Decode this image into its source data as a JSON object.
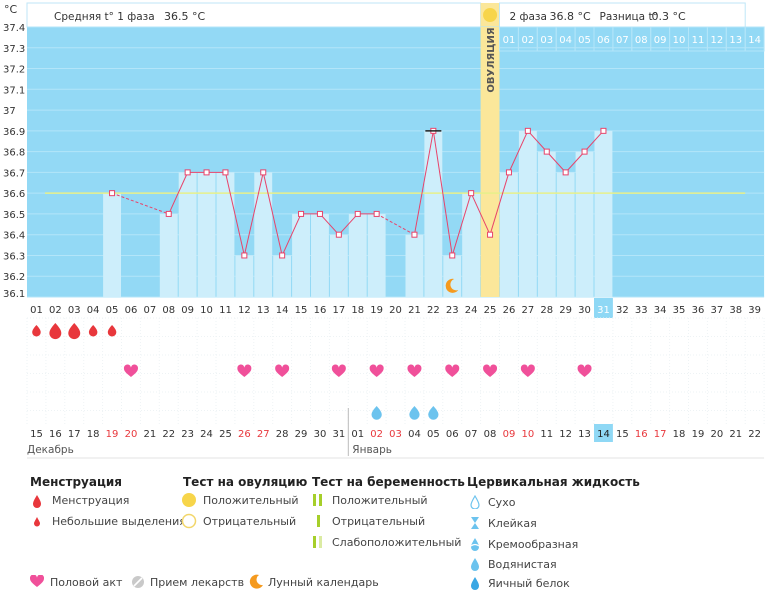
{
  "units": "°C",
  "header": {
    "phase1_label": "Средняя t° 1 фаза",
    "phase1_value": "36.5 °C",
    "phase2_label": "2 фаза",
    "phase2_value": "36.8 °C",
    "diff_label": "Разница t°",
    "diff_value": "0.3 °C"
  },
  "ovulation_label": "ОВУЛЯЦИЯ",
  "chart_data": {
    "type": "line",
    "ylim": [
      36.1,
      37.4
    ],
    "y_ticks": [
      "36.1",
      "36.2",
      "36.3",
      "36.4",
      "36.5",
      "36.6",
      "36.7",
      "36.8",
      "36.9",
      "37",
      "37.1",
      "37.2",
      "37.3",
      "37.4"
    ],
    "cycle_days": [
      "01",
      "02",
      "03",
      "04",
      "05",
      "06",
      "07",
      "08",
      "09",
      "10",
      "11",
      "12",
      "13",
      "14",
      "15",
      "16",
      "17",
      "18",
      "19",
      "20",
      "21",
      "22",
      "23",
      "24",
      "25",
      "26",
      "27",
      "28",
      "29",
      "30",
      "31",
      "32",
      "33",
      "34",
      "35",
      "36",
      "37",
      "38",
      "39"
    ],
    "current_cycle_day": 31,
    "temperatures": [
      null,
      null,
      null,
      null,
      36.6,
      null,
      null,
      36.5,
      36.7,
      36.7,
      36.7,
      36.3,
      36.7,
      36.3,
      36.5,
      36.5,
      36.4,
      36.5,
      36.5,
      null,
      36.4,
      36.9,
      36.3,
      36.6,
      36.4,
      36.7,
      36.9,
      36.8,
      36.7,
      36.8,
      36.9,
      null,
      null,
      null,
      null,
      null,
      null,
      null,
      null
    ],
    "coverline": 36.6,
    "ovulation_day": 25,
    "phase2_top_labels": [
      "01",
      "02",
      "03",
      "04",
      "05",
      "06",
      "07",
      "08",
      "09",
      "10",
      "11",
      "12",
      "13",
      "14"
    ],
    "calendar_days": [
      "15",
      "16",
      "17",
      "18",
      "19",
      "20",
      "21",
      "22",
      "23",
      "24",
      "25",
      "26",
      "27",
      "28",
      "29",
      "30",
      "31",
      "01",
      "02",
      "03",
      "04",
      "05",
      "06",
      "07",
      "08",
      "09",
      "10",
      "11",
      "12",
      "13",
      "14",
      "15",
      "16",
      "17",
      "18",
      "19",
      "20",
      "21",
      "22"
    ],
    "calendar_red_indices": [
      4,
      5,
      11,
      12,
      18,
      19,
      25,
      26,
      32,
      33
    ],
    "today_index": 30,
    "month_left": "Декабрь",
    "month_right": "Январь",
    "month_split_index": 17,
    "menstruation": [
      1,
      2,
      2,
      1,
      1
    ],
    "intercourse_days": [
      6,
      12,
      14,
      17,
      19,
      21,
      23,
      25,
      27,
      30
    ],
    "cervical_days": [
      19,
      21,
      22
    ],
    "moon_day": 23
  },
  "colors": {
    "chart_bg": "#93d9f5",
    "bar": "#cdeefb",
    "line": "#e8436a",
    "coverline": "#e7f08a",
    "ovulation": "#fbe79a",
    "highlight": "#8fd8f5",
    "red": "#e8373c",
    "heart": "#f0509a",
    "drop": "#6cc3ee",
    "moon": "#f59a1e"
  },
  "legend": {
    "menstruation": {
      "title": "Менструация",
      "items": [
        "Менструация",
        "Небольшие выделения"
      ]
    },
    "ovulation_test": {
      "title": "Тест на овуляцию",
      "items": [
        "Положительный",
        "Отрицательный"
      ]
    },
    "pregnancy_test": {
      "title": "Тест на беременность",
      "items": [
        "Положительный",
        "Отрицательный",
        "Слабоположительный"
      ]
    },
    "cervical": {
      "title": "Цервикальная жидкость",
      "items": [
        "Сухо",
        "Клейкая",
        "Кремообразная",
        "Водянистая",
        "Яичный белок"
      ]
    },
    "bottom": [
      "Половой акт",
      "Прием лекарств",
      "Лунный календарь"
    ]
  }
}
